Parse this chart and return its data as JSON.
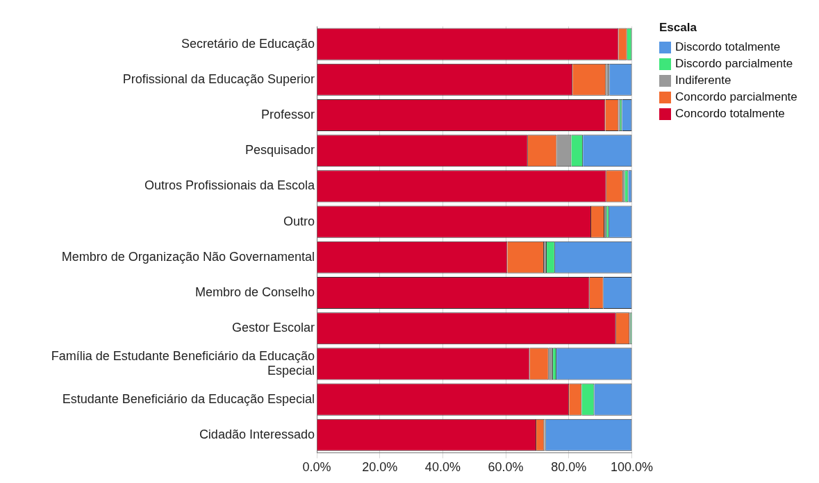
{
  "chart_data": {
    "type": "bar",
    "orientation": "horizontal",
    "stacked": true,
    "legend_title": "Escala",
    "legend": "top right",
    "grid": "x",
    "categories": [
      "Secretário de Educação",
      "Profissional da Educação Superior",
      "Professor",
      "Pesquisador",
      "Outros Profissionais da Escola",
      "Outro",
      "Membro de Organização Não Governamental",
      "Membro de Conselho",
      "Gestor Escolar",
      "Família de Estudante Beneficiário da Educação Especial",
      "Estudante Beneficiário da Educação Especial",
      "Cidadão Interessado"
    ],
    "series": [
      {
        "name": "Concordo totalmente",
        "color": "#d40030",
        "values": [
          95.8,
          81.2,
          91.6,
          67.0,
          91.9,
          87.1,
          60.5,
          86.6,
          95.0,
          67.6,
          80.1,
          69.7
        ]
      },
      {
        "name": "Concordo parcialmente",
        "color": "#f26a2e",
        "values": [
          2.7,
          10.6,
          4.2,
          9.2,
          5.3,
          4.2,
          11.6,
          4.4,
          4.3,
          6.0,
          4.0,
          2.5
        ]
      },
      {
        "name": "Indiferente",
        "color": "#999999",
        "values": [
          0,
          1.1,
          0.5,
          4.6,
          0.6,
          0.7,
          0.9,
          0,
          0.3,
          1.4,
          0,
          0.5
        ]
      },
      {
        "name": "Discordo parcialmente",
        "color": "#3ee67a",
        "values": [
          1.5,
          0,
          0.6,
          3.7,
          1.1,
          0.8,
          2.6,
          0,
          0.4,
          1.1,
          4.0,
          0
        ]
      },
      {
        "name": "Discordo totalmente",
        "color": "#5596e3",
        "values": [
          0,
          7.1,
          3.1,
          15.5,
          1.1,
          7.2,
          24.4,
          9.0,
          0,
          23.9,
          11.9,
          27.3
        ]
      }
    ],
    "xlim": [
      0,
      100
    ],
    "xticks": [
      {
        "value": 0,
        "label": "0.0%"
      },
      {
        "value": 20,
        "label": "20.0%"
      },
      {
        "value": 40,
        "label": "40.0%"
      },
      {
        "value": 60,
        "label": "60.0%"
      },
      {
        "value": 80,
        "label": "80.0%"
      },
      {
        "value": 100,
        "label": "100.0%"
      }
    ]
  }
}
